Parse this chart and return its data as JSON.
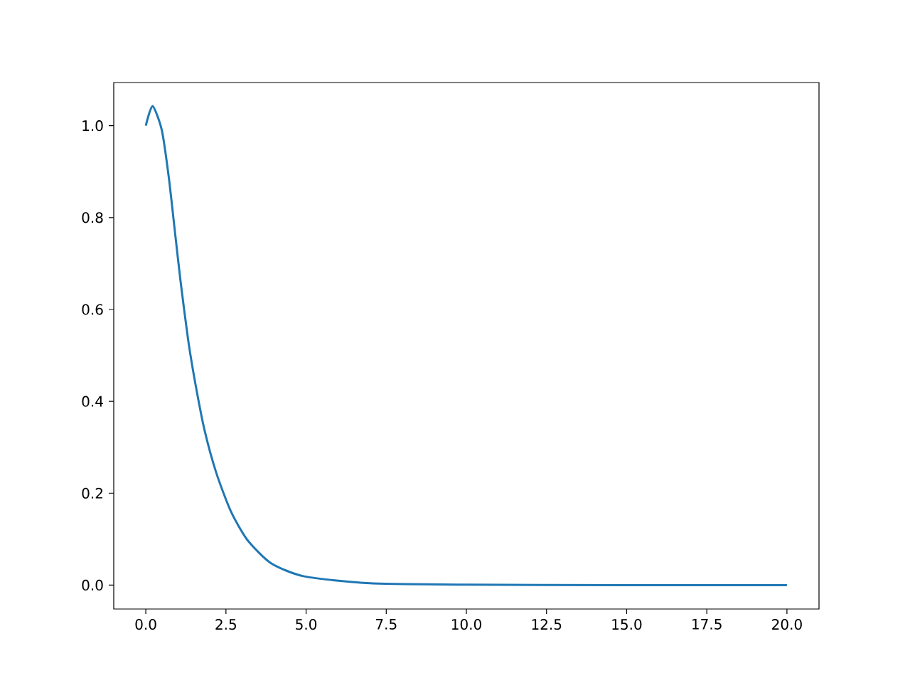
{
  "chart_data": {
    "type": "line",
    "x": [
      0,
      0.21,
      0.5,
      0.72,
      0.92,
      1.09,
      1.32,
      1.54,
      1.83,
      2.2,
      2.65,
      3.16,
      3.9,
      4.94,
      7.0,
      10.0,
      15.0,
      20.0
    ],
    "series": [
      {
        "color": "#1f77b4",
        "values": [
          1.0,
          1.043,
          0.99,
          0.886,
          0.762,
          0.658,
          0.534,
          0.441,
          0.338,
          0.244,
          0.161,
          0.099,
          0.048,
          0.019,
          0.004,
          0.001,
          0.0,
          0.0
        ]
      }
    ],
    "xlim": [
      -1,
      21
    ],
    "ylim": [
      -0.052,
      1.094
    ],
    "xticks": [
      {
        "value": 0,
        "label": "0.0"
      },
      {
        "value": 2.5,
        "label": "2.5"
      },
      {
        "value": 5,
        "label": "5.0"
      },
      {
        "value": 7.5,
        "label": "7.5"
      },
      {
        "value": 10,
        "label": "10.0"
      },
      {
        "value": 12.5,
        "label": "12.5"
      },
      {
        "value": 15,
        "label": "15.0"
      },
      {
        "value": 17.5,
        "label": "17.5"
      },
      {
        "value": 20,
        "label": "20.0"
      }
    ],
    "yticks": [
      {
        "value": 0,
        "label": "0.0"
      },
      {
        "value": 0.2,
        "label": "0.2"
      },
      {
        "value": 0.4,
        "label": "0.4"
      },
      {
        "value": 0.6,
        "label": "0.6"
      },
      {
        "value": 0.8,
        "label": "0.8"
      },
      {
        "value": 1.0,
        "label": "1.0"
      }
    ],
    "grid": false,
    "marker": "none",
    "line_style": "solid"
  }
}
